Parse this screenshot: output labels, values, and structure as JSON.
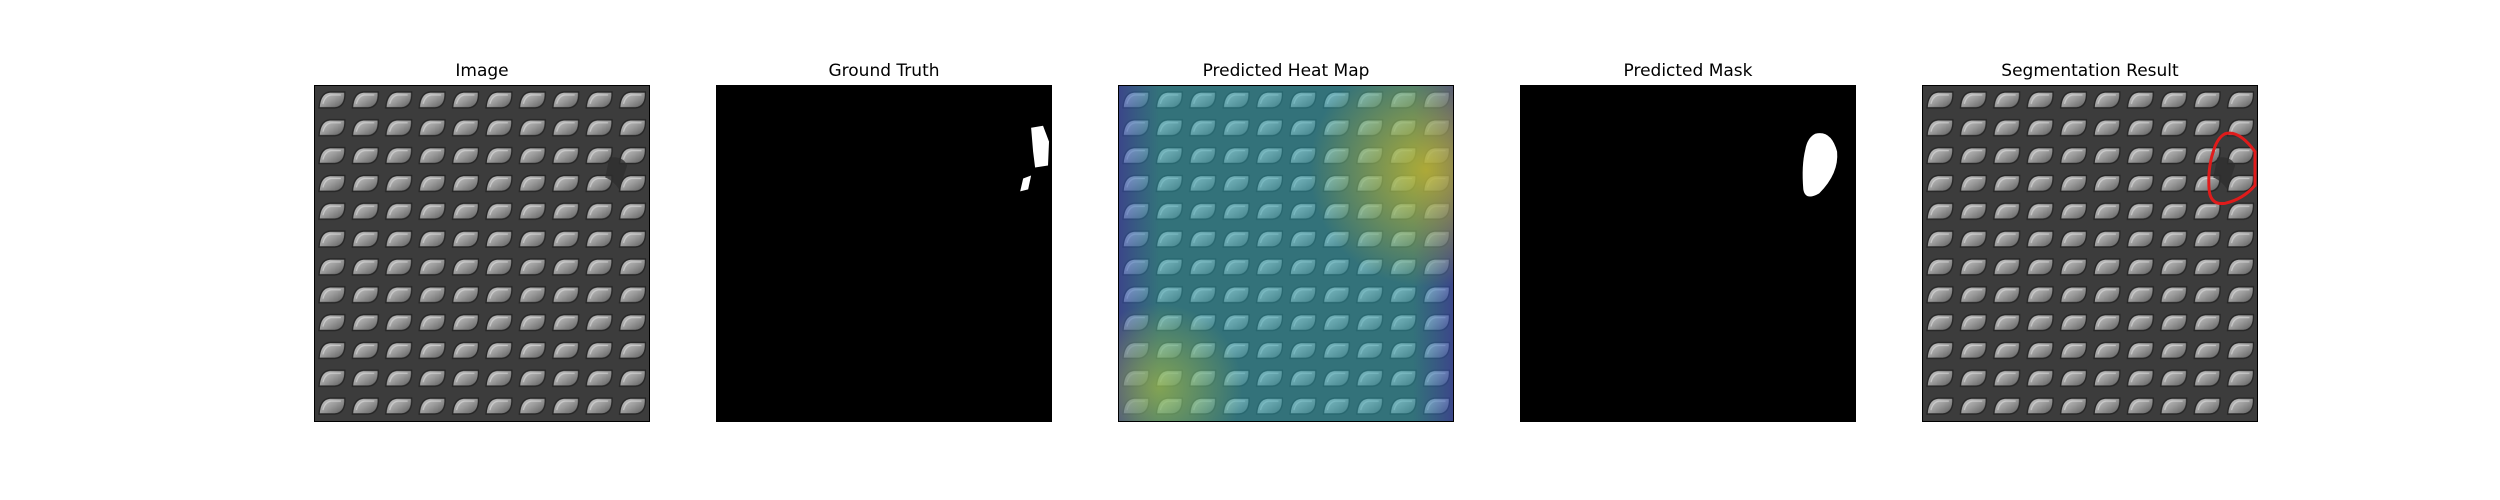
{
  "panels": [
    {
      "title": "Image"
    },
    {
      "title": "Ground Truth"
    },
    {
      "title": "Predicted Heat Map"
    },
    {
      "title": "Predicted Mask"
    },
    {
      "title": "Segmentation Result"
    }
  ],
  "colors": {
    "background": "#ffffff",
    "mask_background": "#000000",
    "mask_foreground": "#ffffff",
    "contour": "#e01b1b",
    "texture_dark": "#3a3a3a",
    "texture_light": "#a8a8a8"
  }
}
